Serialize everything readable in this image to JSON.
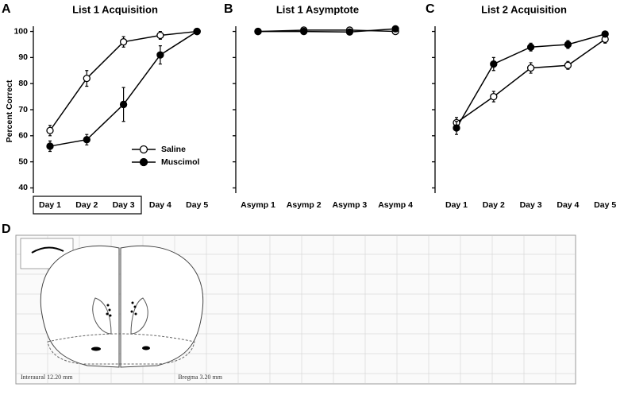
{
  "chart_data": [
    {
      "type": "line",
      "panel_label": "A",
      "title": "List 1 Acquisition",
      "ylabel": "Percent Correct",
      "categories": [
        "Day 1",
        "Day 2",
        "Day 3",
        "Day 4",
        "Day 5"
      ],
      "series": [
        {
          "name": "Saline",
          "color": "#000000",
          "marker_fill": "#ffffff",
          "values": [
            62,
            82,
            96,
            98.5,
            100
          ],
          "errors": [
            2,
            3,
            2,
            1.5,
            0
          ]
        },
        {
          "name": "Muscimol",
          "color": "#000000",
          "marker_fill": "#000000",
          "values": [
            56,
            58.5,
            72,
            91,
            100
          ],
          "errors": [
            2,
            2,
            6.5,
            3.5,
            0
          ]
        }
      ],
      "ylim": [
        38,
        102
      ],
      "yticks": [
        40,
        50,
        60,
        70,
        80,
        90,
        100
      ],
      "ytick_labels": true,
      "legend": "center-right"
    },
    {
      "type": "line",
      "panel_label": "B",
      "title": "List 1 Asymptote",
      "categories": [
        "Asymp 1",
        "Asymp 2",
        "Asymp 3",
        "Asymp 4"
      ],
      "series": [
        {
          "color": "#000000",
          "marker_fill": "#ffffff",
          "values": [
            100,
            100.5,
            100.5,
            100
          ],
          "errors": [
            0,
            0,
            0,
            0
          ]
        },
        {
          "color": "#000000",
          "marker_fill": "#000000",
          "values": [
            100,
            100,
            99.8,
            101
          ],
          "errors": [
            0,
            0,
            0,
            0
          ]
        }
      ],
      "ylim": [
        38,
        102
      ],
      "yticks": [
        40,
        50,
        60,
        70,
        80,
        90,
        100
      ],
      "ytick_labels": false
    },
    {
      "type": "line",
      "panel_label": "C",
      "title": "List 2 Acquisition",
      "categories": [
        "Day 1",
        "Day 2",
        "Day 3",
        "Day 4",
        "Day 5"
      ],
      "series": [
        {
          "color": "#000000",
          "marker_fill": "#ffffff",
          "values": [
            65,
            75,
            86,
            87,
            97
          ],
          "errors": [
            2,
            2,
            2,
            1.5,
            1.5
          ]
        },
        {
          "color": "#000000",
          "marker_fill": "#000000",
          "values": [
            63,
            87.5,
            94,
            95,
            99
          ],
          "errors": [
            2.5,
            2.5,
            1.5,
            1.5,
            0.5
          ]
        }
      ],
      "ylim": [
        38,
        102
      ],
      "yticks": [
        40,
        50,
        60,
        70,
        80,
        90,
        100
      ],
      "ytick_labels": false
    }
  ],
  "figure_d": {
    "panel_label": "D",
    "left_caption": "Interaural 12.20 mm",
    "right_caption": "Bregma 3.20 mm"
  }
}
